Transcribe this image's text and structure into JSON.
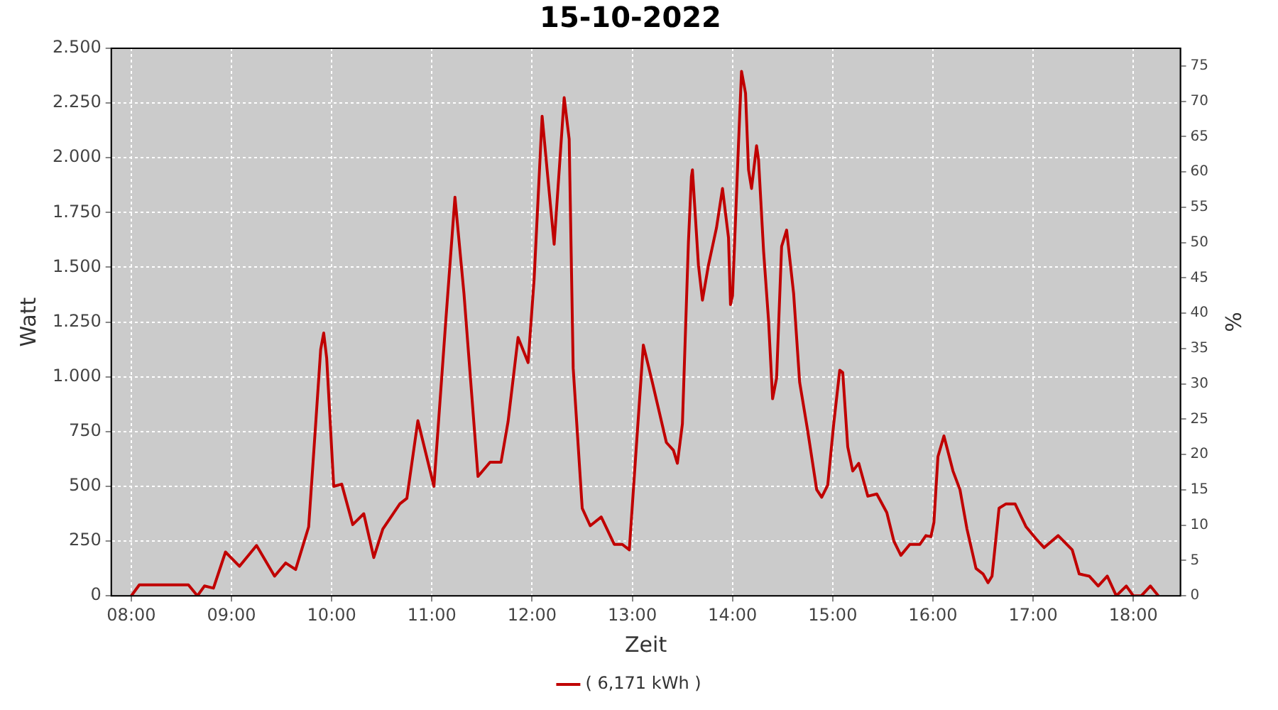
{
  "chart_data": {
    "type": "line",
    "title": "15-10-2022",
    "xlabel": "Zeit",
    "ylabel": "Watt",
    "y2label": "%",
    "xlim": [
      7.8,
      18.47
    ],
    "xticks": [
      {
        "value": 8,
        "label": "08:00"
      },
      {
        "value": 9,
        "label": "09:00"
      },
      {
        "value": 10,
        "label": "10:00"
      },
      {
        "value": 11,
        "label": "11:00"
      },
      {
        "value": 12,
        "label": "12:00"
      },
      {
        "value": 13,
        "label": "13:00"
      },
      {
        "value": 14,
        "label": "14:00"
      },
      {
        "value": 15,
        "label": "15:00"
      },
      {
        "value": 16,
        "label": "16:00"
      },
      {
        "value": 17,
        "label": "17:00"
      },
      {
        "value": 18,
        "label": "18:00"
      }
    ],
    "ylim": [
      0,
      2500
    ],
    "yticks": [
      {
        "value": 0,
        "label": "0"
      },
      {
        "value": 250,
        "label": "250"
      },
      {
        "value": 500,
        "label": "500"
      },
      {
        "value": 750,
        "label": "750"
      },
      {
        "value": 1000,
        "label": "1.000"
      },
      {
        "value": 1250,
        "label": "1.250"
      },
      {
        "value": 1500,
        "label": "1.500"
      },
      {
        "value": 1750,
        "label": "1.750"
      },
      {
        "value": 2000,
        "label": "2.000"
      },
      {
        "value": 2250,
        "label": "2.250"
      },
      {
        "value": 2500,
        "label": "2.500"
      }
    ],
    "y2lim": [
      0,
      77.5
    ],
    "y2ticks": [
      0,
      5,
      10,
      15,
      20,
      25,
      30,
      35,
      40,
      45,
      50,
      55,
      60,
      65,
      70,
      75
    ],
    "grid": true,
    "legend": "bottom",
    "marker": "none",
    "line_style": "solid",
    "series": [
      {
        "name": "( 6,171 kWh )",
        "color": "#c00000",
        "x": [
          8.0,
          8.08,
          8.57,
          8.66,
          8.73,
          8.82,
          8.94,
          9.08,
          9.25,
          9.43,
          9.54,
          9.64,
          9.77,
          9.84,
          9.89,
          9.92,
          9.95,
          10.02,
          10.1,
          10.21,
          10.32,
          10.42,
          10.51,
          10.68,
          10.75,
          10.86,
          11.02,
          11.14,
          11.23,
          11.32,
          11.46,
          11.58,
          11.69,
          11.76,
          11.86,
          11.96,
          12.02,
          12.1,
          12.16,
          12.22,
          12.32,
          12.37,
          12.41,
          12.5,
          12.58,
          12.69,
          12.82,
          12.9,
          12.97,
          13.04,
          13.11,
          13.2,
          13.34,
          13.41,
          13.45,
          13.5,
          13.56,
          13.59,
          13.6,
          13.66,
          13.7,
          13.76,
          13.84,
          13.9,
          13.96,
          13.98,
          14.0,
          14.06,
          14.09,
          14.13,
          14.16,
          14.19,
          14.24,
          14.26,
          14.31,
          14.36,
          14.4,
          14.44,
          14.49,
          14.54,
          14.61,
          14.67,
          14.75,
          14.84,
          14.89,
          14.95,
          15.01,
          15.07,
          15.1,
          15.15,
          15.2,
          15.26,
          15.35,
          15.44,
          15.54,
          15.61,
          15.68,
          15.77,
          15.87,
          15.93,
          15.98,
          16.01,
          16.05,
          16.11,
          16.2,
          16.27,
          16.34,
          16.43,
          16.5,
          16.55,
          16.59,
          16.66,
          16.73,
          16.82,
          16.93,
          17.03,
          17.11,
          17.25,
          17.39,
          17.46,
          17.56,
          17.65,
          17.74,
          17.83,
          17.93,
          18.0,
          18.08,
          18.17,
          18.25
        ],
        "values": [
          0,
          50,
          50,
          0,
          45,
          35,
          200,
          135,
          230,
          90,
          150,
          120,
          315,
          785,
          1125,
          1200,
          1085,
          500,
          510,
          325,
          375,
          175,
          305,
          420,
          445,
          800,
          500,
          1265,
          1820,
          1380,
          545,
          610,
          610,
          795,
          1180,
          1065,
          1445,
          2190,
          1895,
          1605,
          2275,
          2085,
          1040,
          400,
          320,
          360,
          235,
          235,
          210,
          680,
          1145,
          975,
          700,
          665,
          605,
          785,
          1615,
          1915,
          1945,
          1510,
          1350,
          1510,
          1680,
          1860,
          1635,
          1330,
          1370,
          2065,
          2395,
          2295,
          1945,
          1860,
          2055,
          1990,
          1575,
          1255,
          900,
          995,
          1595,
          1670,
          1380,
          975,
          755,
          485,
          450,
          505,
          785,
          1030,
          1020,
          680,
          570,
          605,
          455,
          465,
          380,
          250,
          185,
          235,
          235,
          275,
          270,
          335,
          635,
          730,
          570,
          485,
          305,
          125,
          100,
          60,
          90,
          400,
          420,
          420,
          315,
          260,
          220,
          275,
          210,
          100,
          90,
          45,
          90,
          0,
          45,
          0,
          0,
          45,
          0
        ]
      }
    ]
  }
}
